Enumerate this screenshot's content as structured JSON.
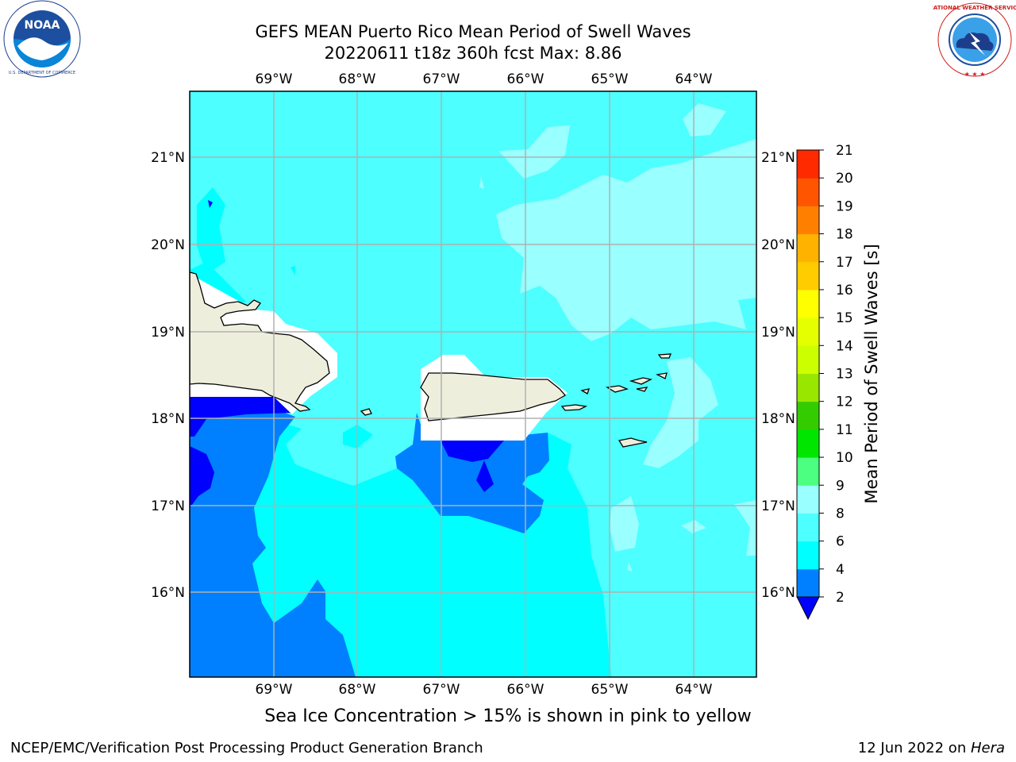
{
  "header": {
    "title_line1": "GEFS MEAN Puerto Rico Mean Period of Swell Waves",
    "title_line2": "20220611 t18z 360h fcst   Max: 8.86"
  },
  "logos": {
    "left": {
      "icon": "noaa-logo",
      "text": "NOAA"
    },
    "right": {
      "icon": "nws-logo",
      "text": "NATIONAL WEATHER SERVICE"
    }
  },
  "map": {
    "lon_labels": [
      "69°W",
      "68°W",
      "67°W",
      "66°W",
      "65°W",
      "64°W"
    ],
    "lat_labels": [
      "21°N",
      "20°N",
      "19°N",
      "18°N",
      "17°N",
      "16°N"
    ],
    "land_color": "#eeeedd",
    "ocean_colors": {
      "level_2_4": "#0080ff",
      "level_4_6": "#00ffff",
      "level_6_8": "#4dffff",
      "level_8_9": "#99ffff",
      "below_2": "#0000ff"
    }
  },
  "colorbar": {
    "label": "Mean Period of Swell Waves [s]",
    "ticks": [
      "2",
      "4",
      "6",
      "8",
      "9",
      "10",
      "11",
      "12",
      "13",
      "14",
      "15",
      "16",
      "17",
      "18",
      "19",
      "20",
      "21"
    ],
    "colors": [
      "#0080ff",
      "#00ffff",
      "#4dffff",
      "#99ffff",
      "#4dff80",
      "#00e600",
      "#33cc00",
      "#99e600",
      "#ccff00",
      "#e6ff00",
      "#ffff00",
      "#ffcc00",
      "#ffb300",
      "#ff8000",
      "#ff5500",
      "#ff2a00",
      "#ff0000"
    ],
    "extend_color": "#0000ff"
  },
  "note": "Sea Ice Concentration > 15% is shown in pink to yellow",
  "footer": {
    "left": "NCEP/EMC/Verification Post Processing Product Generation Branch",
    "date": "12 Jun 2022 on ",
    "machine": "Hera"
  }
}
